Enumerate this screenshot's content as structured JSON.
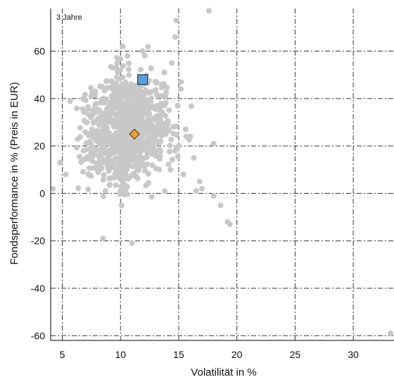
{
  "chart_data": {
    "type": "scatter",
    "title": "",
    "panel_label": "3 Jahre",
    "xlabel": "Volatilität in %",
    "ylabel": "Fondsperformance in % (Preis in EUR)",
    "xlim": [
      4,
      33.5
    ],
    "ylim": [
      -62,
      78
    ],
    "x_ticks": [
      5,
      10,
      15,
      20,
      25,
      30
    ],
    "y_ticks": [
      -60,
      -40,
      -20,
      0,
      20,
      40,
      60
    ],
    "grid": true,
    "colors": {
      "peer": "#c8c8c8",
      "fund": "#5b9bd5",
      "fund_stroke": "#1f3a5f",
      "category": "#e5a33a",
      "category_stroke": "#6b4210",
      "grid": "#333333",
      "axis": "#000000"
    },
    "peer_cluster_center": [
      10.5,
      27
    ],
    "peer_cluster_spread": [
      1.6,
      11
    ],
    "peer_outliers": [
      [
        17.6,
        77
      ],
      [
        14.8,
        73
      ],
      [
        14.7,
        66
      ],
      [
        10.2,
        62
      ],
      [
        11.9,
        60
      ],
      [
        10.6,
        58
      ],
      [
        4.8,
        13
      ],
      [
        5.3,
        8
      ],
      [
        4.2,
        2
      ],
      [
        8.5,
        -19
      ],
      [
        10.0,
        1
      ],
      [
        10.1,
        -5
      ],
      [
        11.0,
        -21
      ],
      [
        15.0,
        20
      ],
      [
        16.3,
        15
      ],
      [
        16.8,
        5
      ],
      [
        17.0,
        2
      ],
      [
        16.5,
        1
      ],
      [
        18.0,
        -1
      ],
      [
        18.6,
        -5
      ],
      [
        19.2,
        -12
      ],
      [
        19.4,
        -13
      ],
      [
        14.3,
        10
      ],
      [
        14.7,
        18
      ],
      [
        15.6,
        27
      ],
      [
        18.0,
        21
      ],
      [
        16.0,
        24
      ],
      [
        15.2,
        44
      ],
      [
        33.2,
        -59
      ],
      [
        15.4,
        8
      ],
      [
        13.8,
        1
      ],
      [
        15.2,
        47
      ],
      [
        14.4,
        55
      ]
    ],
    "series": [
      {
        "name": "",
        "marker": "square",
        "points": [
          [
            11.9,
            48
          ]
        ]
      },
      {
        "name": "",
        "marker": "diamond",
        "points": [
          [
            11.2,
            25
          ]
        ]
      }
    ]
  }
}
